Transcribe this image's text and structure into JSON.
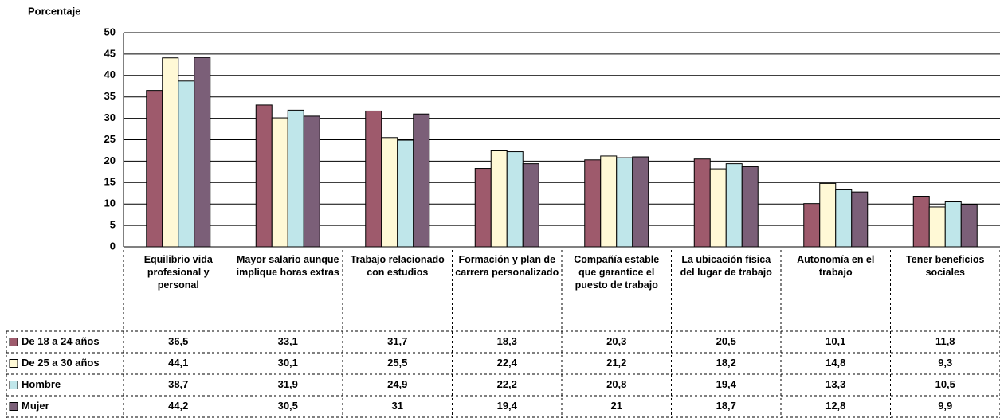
{
  "chart_data": {
    "type": "bar",
    "y_label": "Porcentaje",
    "categories": [
      "Equilibrio vida profesional y personal",
      "Mayor salario aunque implique horas extras",
      "Trabajo relacionado con estudios",
      "Formación y plan de carrera personalizado",
      "Compañía estable que garantice el puesto de trabajo",
      "La ubicación física del lugar de trabajo",
      "Autonomía en el trabajo",
      "Tener beneficios sociales"
    ],
    "series": [
      {
        "name": "De 18 a 24 años",
        "color": "#9e5a6c",
        "values": [
          36.5,
          33.1,
          31.7,
          18.3,
          20.3,
          20.5,
          10.1,
          11.8
        ],
        "value_labels": [
          "36,5",
          "33,1",
          "31,7",
          "18,3",
          "20,3",
          "20,5",
          "10,1",
          "11,8"
        ]
      },
      {
        "name": "De 25 a 30 años",
        "color": "#fff9d6",
        "values": [
          44.1,
          30.1,
          25.5,
          22.4,
          21.2,
          18.2,
          14.8,
          9.3
        ],
        "value_labels": [
          "44,1",
          "30,1",
          "25,5",
          "22,4",
          "21,2",
          "18,2",
          "14,8",
          "9,3"
        ]
      },
      {
        "name": "Hombre",
        "color": "#bfe6ea",
        "values": [
          38.7,
          31.9,
          24.9,
          22.2,
          20.8,
          19.4,
          13.3,
          10.5
        ],
        "value_labels": [
          "38,7",
          "31,9",
          "24,9",
          "22,2",
          "20,8",
          "19,4",
          "13,3",
          "10,5"
        ]
      },
      {
        "name": "Mujer",
        "color": "#7b5f78",
        "values": [
          44.2,
          30.5,
          31,
          19.4,
          21,
          18.7,
          12.8,
          9.9
        ],
        "value_labels": [
          "44,2",
          "30,5",
          "31",
          "19,4",
          "21",
          "18,7",
          "12,8",
          "9,9"
        ]
      }
    ],
    "ylim": [
      0,
      50
    ],
    "yticks": [
      0,
      5,
      10,
      15,
      20,
      25,
      30,
      35,
      40,
      45,
      50
    ],
    "grid": true
  }
}
